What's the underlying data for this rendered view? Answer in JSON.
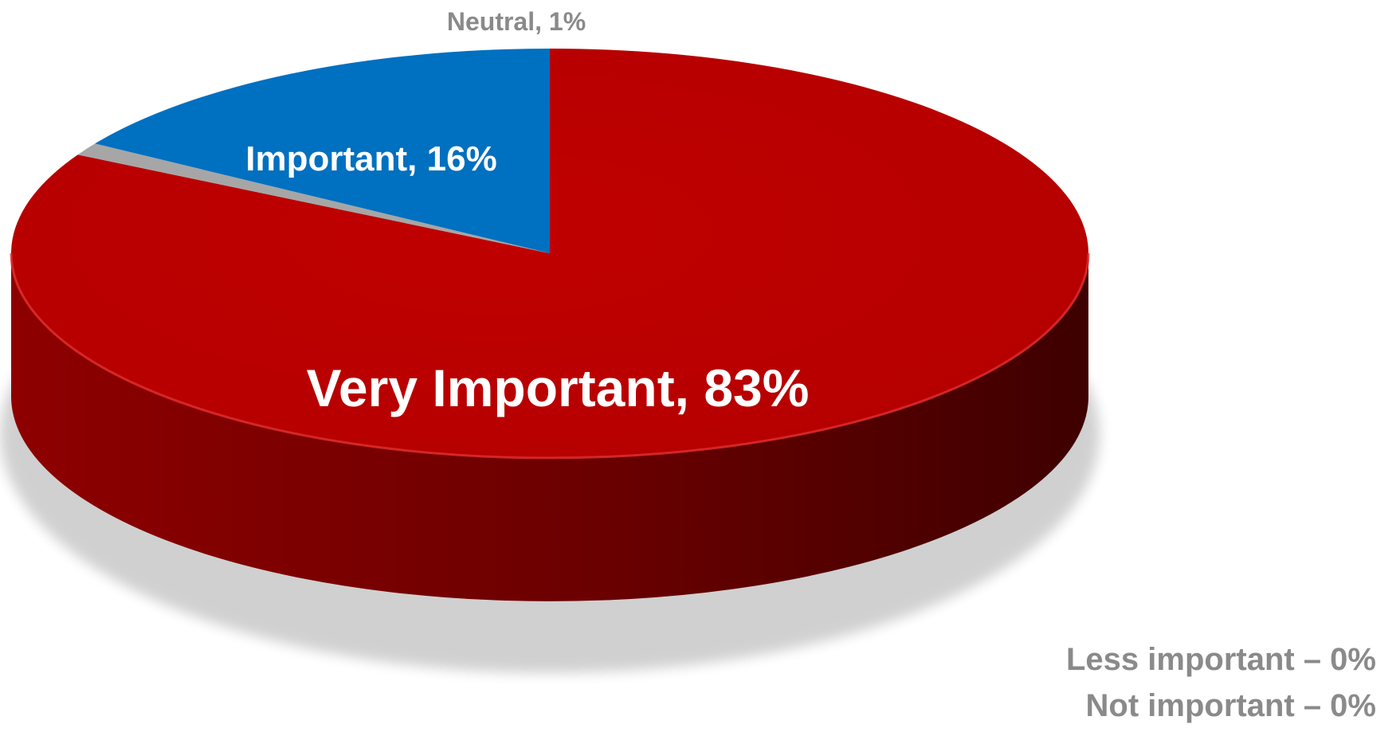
{
  "chart_data": {
    "type": "pie",
    "style": "3d",
    "slices": [
      {
        "label": "Very Important",
        "value": 83,
        "color": "#bf0000"
      },
      {
        "label": "Important",
        "value": 16,
        "color": "#0070c0"
      },
      {
        "label": "Neutral",
        "value": 1,
        "color": "#a6a6a6"
      },
      {
        "label": "Less important",
        "value": 0,
        "color": "#8a8a8a"
      },
      {
        "label": "Not important",
        "value": 0,
        "color": "#8a8a8a"
      }
    ],
    "slice_labels": [
      "Very Important, 83%",
      "Important, 16%",
      "Neutral, 1%"
    ],
    "zero_notes": [
      "Less important – 0%",
      "Not important – 0%"
    ]
  }
}
